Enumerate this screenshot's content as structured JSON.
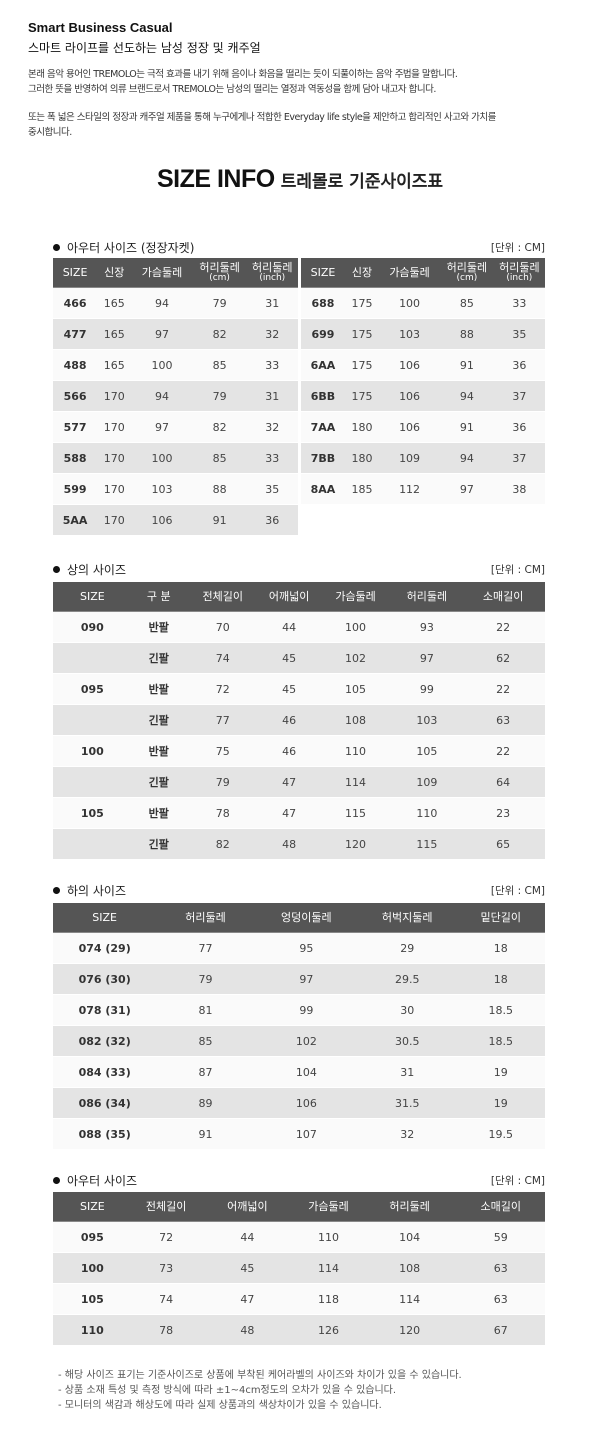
{
  "intro": {
    "title": "Smart Business Casual",
    "subtitle": "스마트 라이프를 선도하는 남성 정장 및 캐주얼",
    "para1": [
      "본래 음악 용어인 TREMOLO는 극적 효과를 내기 위해 음이나 화음을 떨리는 듯이 되풀이하는 음악 주법을 말합니다.",
      "그러한 뜻을 반영하여 의류 브랜드로서 TREMOLO는 남성의 떨리는 열정과 역동성을 함께 담아 내고자 합니다."
    ],
    "para2": [
      "또는 폭 넓은 스타일의 정장과 캐주얼 제품을 통해 누구에게나 적합한 Everyday life style을 제안하고 합리적인 사고와 가치를",
      "중시합니다."
    ]
  },
  "heading": {
    "en": "SIZE INFO",
    "ko": "트레몰로 기준사이즈표"
  },
  "unit_label": "[단위 : CM]",
  "outer_suit": {
    "title": "아우터 사이즈 (정장자켓)",
    "headers": [
      "SIZE",
      "신장",
      "가슴둘레",
      "허리둘레|(cm)",
      "허리둘레|(inch)"
    ],
    "left_rows": [
      [
        "466",
        "165",
        "94",
        "79",
        "31"
      ],
      [
        "477",
        "165",
        "97",
        "82",
        "32"
      ],
      [
        "488",
        "165",
        "100",
        "85",
        "33"
      ],
      [
        "566",
        "170",
        "94",
        "79",
        "31"
      ],
      [
        "577",
        "170",
        "97",
        "82",
        "32"
      ],
      [
        "588",
        "170",
        "100",
        "85",
        "33"
      ],
      [
        "599",
        "170",
        "103",
        "88",
        "35"
      ],
      [
        "5AA",
        "170",
        "106",
        "91",
        "36"
      ]
    ],
    "right_rows": [
      [
        "688",
        "175",
        "100",
        "85",
        "33"
      ],
      [
        "699",
        "175",
        "103",
        "88",
        "35"
      ],
      [
        "6AA",
        "175",
        "106",
        "91",
        "36"
      ],
      [
        "6BB",
        "175",
        "106",
        "94",
        "37"
      ],
      [
        "7AA",
        "180",
        "106",
        "91",
        "36"
      ],
      [
        "7BB",
        "180",
        "109",
        "94",
        "37"
      ],
      [
        "8AA",
        "185",
        "112",
        "97",
        "38"
      ]
    ]
  },
  "tops": {
    "title": "상의 사이즈",
    "headers": [
      "SIZE",
      "구 분",
      "전체길이",
      "어깨넓이",
      "가슴둘레",
      "허리둘레",
      "소매길이"
    ],
    "rows": [
      [
        "090",
        "반팔",
        "70",
        "44",
        "100",
        "93",
        "22"
      ],
      [
        "",
        "긴팔",
        "74",
        "45",
        "102",
        "97",
        "62"
      ],
      [
        "095",
        "반팔",
        "72",
        "45",
        "105",
        "99",
        "22"
      ],
      [
        "",
        "긴팔",
        "77",
        "46",
        "108",
        "103",
        "63"
      ],
      [
        "100",
        "반팔",
        "75",
        "46",
        "110",
        "105",
        "22"
      ],
      [
        "",
        "긴팔",
        "79",
        "47",
        "114",
        "109",
        "64"
      ],
      [
        "105",
        "반팔",
        "78",
        "47",
        "115",
        "110",
        "23"
      ],
      [
        "",
        "긴팔",
        "82",
        "48",
        "120",
        "115",
        "65"
      ]
    ]
  },
  "bottoms": {
    "title": "하의 사이즈",
    "headers": [
      "SIZE",
      "허리둘레",
      "엉덩이둘레",
      "허벅지둘레",
      "밑단길이"
    ],
    "rows": [
      [
        "074 (29)",
        "77",
        "95",
        "29",
        "18"
      ],
      [
        "076 (30)",
        "79",
        "97",
        "29.5",
        "18"
      ],
      [
        "078 (31)",
        "81",
        "99",
        "30",
        "18.5"
      ],
      [
        "082 (32)",
        "85",
        "102",
        "30.5",
        "18.5"
      ],
      [
        "084 (33)",
        "87",
        "104",
        "31",
        "19"
      ],
      [
        "086 (34)",
        "89",
        "106",
        "31.5",
        "19"
      ],
      [
        "088 (35)",
        "91",
        "107",
        "32",
        "19.5"
      ]
    ]
  },
  "outer": {
    "title": "아우터 사이즈",
    "headers": [
      "SIZE",
      "전체길이",
      "어깨넓이",
      "가슴둘레",
      "허리둘레",
      "소매길이"
    ],
    "rows": [
      [
        "095",
        "72",
        "44",
        "110",
        "104",
        "59"
      ],
      [
        "100",
        "73",
        "45",
        "114",
        "108",
        "63"
      ],
      [
        "105",
        "74",
        "47",
        "118",
        "114",
        "63"
      ],
      [
        "110",
        "78",
        "48",
        "126",
        "120",
        "67"
      ]
    ]
  },
  "notes": [
    "- 해당 사이즈 표기는 기준사이즈로 상품에 부착된 케어라벨의 사이즈와 차이가 있을 수 있습니다.",
    "- 상품 소재 특성 및 측정 방식에 따라 ±1~4cm정도의 오차가 있을 수 있습니다.",
    "- 모니터의 색감과 해상도에 따라 실제 상품과의 색상차이가 있을 수 있습니다."
  ]
}
